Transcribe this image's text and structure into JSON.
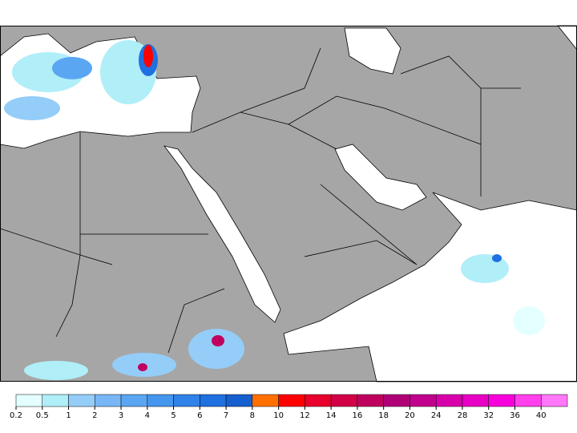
{
  "legend": {
    "ticks": [
      0.2,
      0.5,
      1,
      2,
      3,
      4,
      5,
      6,
      7,
      8,
      10,
      12,
      14,
      16,
      18,
      20,
      24,
      28,
      32,
      36,
      40
    ],
    "colors": [
      "#e4ffff",
      "#b0eef8",
      "#94cdf8",
      "#78b6f6",
      "#5aa6f2",
      "#4496ee",
      "#2f82e8",
      "#1f70e0",
      "#165fce",
      "#ff7000",
      "#ff0000",
      "#e8002e",
      "#d20046",
      "#c0005e",
      "#b00078",
      "#c2008e",
      "#d800aa",
      "#e800c4",
      "#f800dc",
      "#ff40ec",
      "#ff78fa"
    ]
  }
}
